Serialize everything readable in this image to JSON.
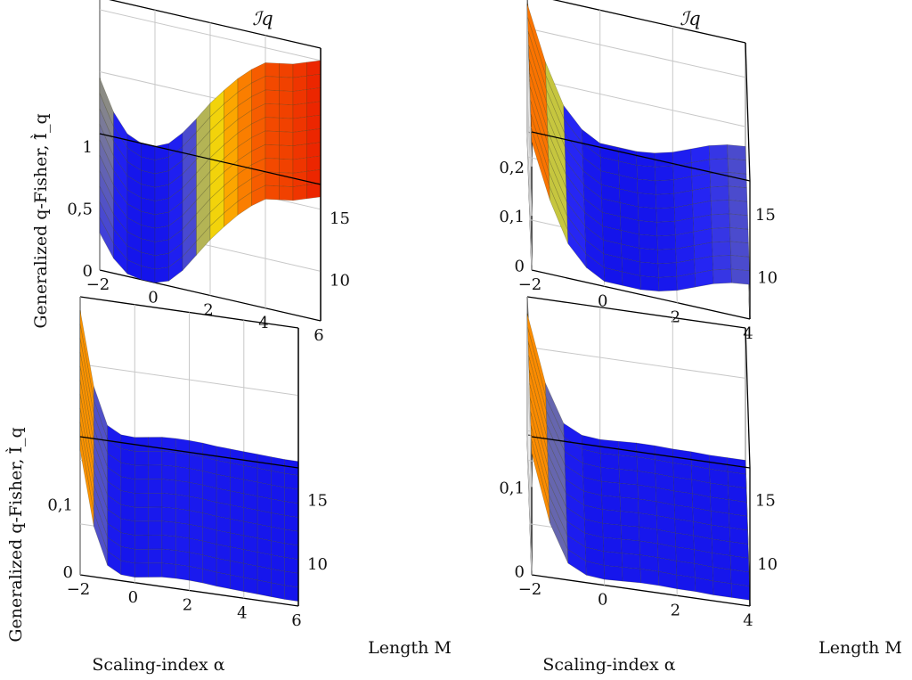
{
  "figure": {
    "ylabel_top": "Generalized q-Fisher, Ì̂_q",
    "ylabel_bottom": "Generalized q-Fisher, Ì̈_q",
    "xlabel": "Scaling-index α",
    "mlabel": "Length M"
  },
  "chart_data": [
    {
      "type": "surface",
      "title": "ℐq",
      "xlabel": "",
      "ylabel": "Generalized q-Fisher",
      "xlim": [
        -2,
        6
      ],
      "ylim": [
        6,
        17
      ],
      "zlim": [
        0,
        1.1
      ],
      "x_ticks": [
        "−2",
        "0",
        "2",
        "4",
        "6"
      ],
      "y_ticks": [
        "10",
        "15"
      ],
      "z_ticks": [
        "0",
        "0,5",
        "1"
      ],
      "alpha": [
        -2,
        -1.5,
        -1,
        -0.5,
        0,
        0.5,
        1,
        1.5,
        2,
        2.5,
        3,
        3.5,
        4,
        4.5,
        5,
        5.5,
        6
      ],
      "M": [
        6,
        17
      ],
      "z_front": [
        0.3,
        0.12,
        0.02,
        0.0,
        0.0,
        0.04,
        0.15,
        0.3,
        0.45,
        0.58,
        0.7,
        0.8,
        0.88,
        0.9,
        0.92,
        0.96,
        1.0
      ],
      "z_back": [
        0.45,
        0.2,
        0.05,
        0.0,
        0.0,
        0.05,
        0.16,
        0.3,
        0.45,
        0.58,
        0.7,
        0.8,
        0.88,
        0.9,
        0.92,
        0.96,
        1.0
      ]
    },
    {
      "type": "surface",
      "title": "ℐq",
      "xlabel": "",
      "ylabel": "",
      "xlim": [
        -2,
        4
      ],
      "ylim": [
        6,
        17
      ],
      "zlim": [
        -0.01,
        0.27
      ],
      "x_ticks": [
        "−2",
        "0",
        "2",
        "4"
      ],
      "y_ticks": [
        "10",
        "15"
      ],
      "z_ticks": [
        "0",
        "0,1",
        "0,2"
      ],
      "alpha": [
        -2,
        -1.5,
        -1,
        -0.5,
        0,
        0.5,
        1,
        1.5,
        2,
        2.5,
        3,
        3.5,
        4
      ],
      "M": [
        6,
        17
      ],
      "z_front": [
        0.25,
        0.14,
        0.06,
        0.02,
        0.0,
        0.0,
        0.0,
        0.005,
        0.015,
        0.03,
        0.045,
        0.055,
        0.06
      ],
      "z_back": [
        0.25,
        0.14,
        0.06,
        0.02,
        0.0,
        0.0,
        0.0,
        0.005,
        0.015,
        0.03,
        0.045,
        0.055,
        0.06
      ]
    },
    {
      "type": "surface",
      "title": "",
      "xlabel": "Scaling-index α",
      "ylabel": "Generalized q-Fisher",
      "xlim": [
        -2,
        6
      ],
      "ylim": [
        6,
        17
      ],
      "zlim": [
        -0.005,
        0.2
      ],
      "x_ticks": [
        "−2",
        "0",
        "2",
        "4",
        "6"
      ],
      "y_ticks": [
        "10",
        "15"
      ],
      "z_ticks": [
        "0",
        "0,1"
      ],
      "alpha": [
        -2,
        -1.5,
        -1,
        -0.5,
        0,
        0.5,
        1,
        1.5,
        2,
        2.5,
        3,
        3.5,
        4,
        4.5,
        5,
        5.5,
        6
      ],
      "M": [
        6,
        17
      ],
      "z_front": [
        0.18,
        0.07,
        0.015,
        0.004,
        0.003,
        0.006,
        0.009,
        0.01,
        0.01,
        0.009,
        0.007,
        0.006,
        0.005,
        0.004,
        0.003,
        0.002,
        0.002
      ],
      "z_back": [
        0.18,
        0.07,
        0.015,
        0.004,
        0.003,
        0.006,
        0.009,
        0.01,
        0.01,
        0.009,
        0.007,
        0.006,
        0.005,
        0.004,
        0.003,
        0.002,
        0.002
      ]
    },
    {
      "type": "surface",
      "title": "",
      "xlabel": "Scaling-index α",
      "ylabel": "",
      "xlim": [
        -2,
        4
      ],
      "ylim": [
        6,
        17
      ],
      "zlim": [
        -0.005,
        0.16
      ],
      "x_ticks": [
        "−2",
        "0",
        "2",
        "4"
      ],
      "y_ticks": [
        "10",
        "15"
      ],
      "z_ticks": [
        "0",
        "0,1"
      ],
      "alpha": [
        -2,
        -1.5,
        -1,
        -0.5,
        0,
        0.5,
        1,
        1.5,
        2,
        2.5,
        3,
        3.5,
        4
      ],
      "M": [
        6,
        17
      ],
      "z_front": [
        0.14,
        0.06,
        0.015,
        0.004,
        0.002,
        0.003,
        0.004,
        0.004,
        0.003,
        0.003,
        0.002,
        0.002,
        0.002
      ],
      "z_back": [
        0.14,
        0.06,
        0.015,
        0.004,
        0.002,
        0.003,
        0.004,
        0.004,
        0.003,
        0.003,
        0.002,
        0.002,
        0.002
      ]
    }
  ]
}
